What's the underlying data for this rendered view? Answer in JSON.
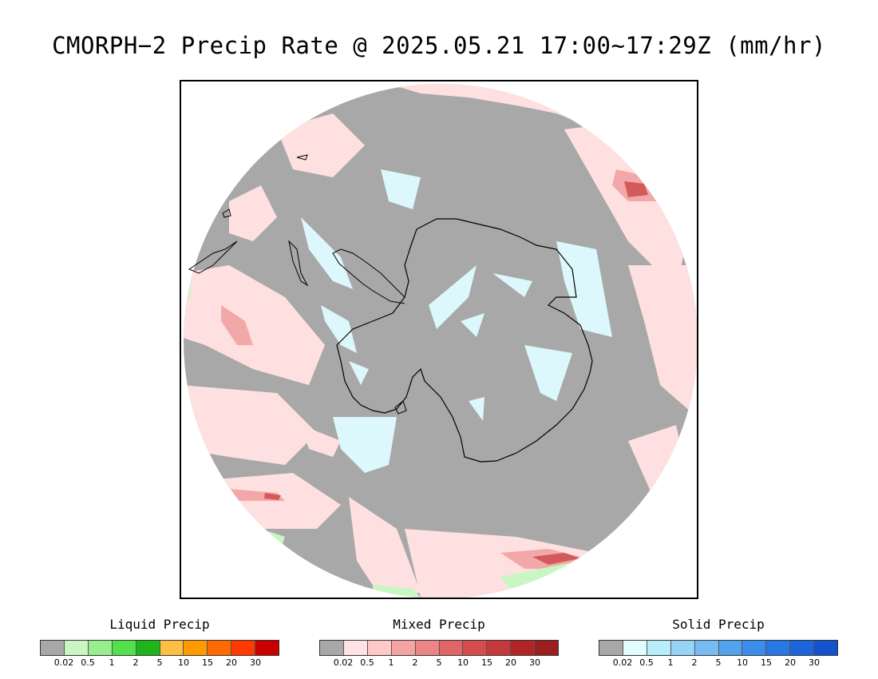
{
  "title": "CMORPH−2 Precip Rate @ 2025.05.21 17:00~17:29Z (mm/hr)",
  "map": {
    "projection": "south-polar-stereographic",
    "region": "Antarctica / Southern Ocean"
  },
  "legend_ticks": [
    "0.02",
    "0.5",
    "1",
    "2",
    "5",
    "10",
    "15",
    "20",
    "30"
  ],
  "legends": [
    {
      "title": "Liquid Precip",
      "colors": [
        "#a8a8a8",
        "#c9f7c3",
        "#97ee8c",
        "#52e04c",
        "#1fb31c",
        "#f9c043",
        "#ff9b00",
        "#ff6a00",
        "#ff3a00",
        "#c90000"
      ]
    },
    {
      "title": "Mixed Precip",
      "colors": [
        "#a8a8a8",
        "#ffe3e3",
        "#ffc9c9",
        "#f5a3a3",
        "#ec8585",
        "#e06666",
        "#d44c4c",
        "#c43939",
        "#b02626",
        "#9c1e1e"
      ]
    },
    {
      "title": "Solid Precip",
      "colors": [
        "#a8a8a8",
        "#e2fcff",
        "#b6eefa",
        "#96d3f5",
        "#76bcf2",
        "#52a2ee",
        "#3a8ee9",
        "#2878e3",
        "#1d64dd",
        "#1553cc"
      ]
    }
  ],
  "colors": {
    "no_precip": "#a8a8a8",
    "light_mixed": "#ffe0e0",
    "light_solid": "#dcf8fc",
    "light_liquid": "#c9f7c3",
    "coastline": "#000000"
  }
}
